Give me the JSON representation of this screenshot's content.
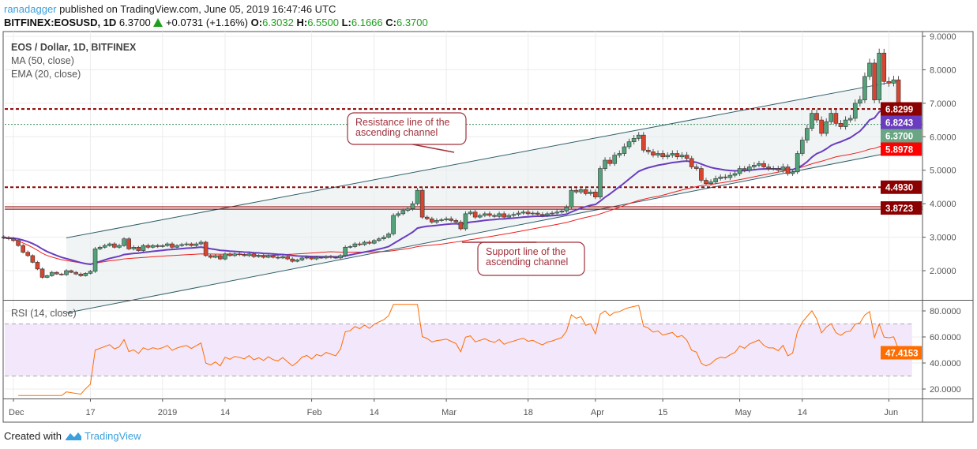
{
  "header": {
    "author": "ranadagger",
    "published": "published on TradingView.com, June 05, 2019 16:47:46 UTC",
    "symbol": "BITFINEX:EOSUSD, 1D",
    "last": "6.3700",
    "change": "+0.0731 (+1.16%)",
    "o_label": "O:",
    "o": "6.3032",
    "h_label": "H:",
    "h": "6.5500",
    "l_label": "L:",
    "l": "6.1666",
    "c_label": "C:",
    "c": "6.3700"
  },
  "legend": {
    "title": "EOS / Dollar, 1D, BITFINEX",
    "ma": "MA (50, close)",
    "ema": "EMA (20, close)",
    "rsi": "RSI (14, close)"
  },
  "footer": {
    "created": "Created with",
    "brand": "TradingView"
  },
  "colors": {
    "up": "#53a27a",
    "down": "#d9442f",
    "ma": "#f01e1e",
    "ema": "#6a3cc0",
    "rsi": "#ff6d00",
    "level": "#9b0f0f"
  },
  "chart_data": {
    "type": "candlestick",
    "start_date": "2018-11-29",
    "closes": [
      2.98,
      2.95,
      2.9,
      2.75,
      2.55,
      2.45,
      2.25,
      2.05,
      1.8,
      1.85,
      1.95,
      1.9,
      1.88,
      2.0,
      1.95,
      1.9,
      1.85,
      1.92,
      1.98,
      2.65,
      2.7,
      2.75,
      2.8,
      2.7,
      2.75,
      2.95,
      2.65,
      2.7,
      2.6,
      2.75,
      2.7,
      2.75,
      2.72,
      2.75,
      2.8,
      2.7,
      2.75,
      2.78,
      2.8,
      2.75,
      2.8,
      2.85,
      2.45,
      2.4,
      2.45,
      2.35,
      2.5,
      2.45,
      2.5,
      2.48,
      2.45,
      2.5,
      2.42,
      2.45,
      2.4,
      2.45,
      2.4,
      2.38,
      2.42,
      2.35,
      2.28,
      2.32,
      2.38,
      2.4,
      2.35,
      2.4,
      2.38,
      2.42,
      2.4,
      2.38,
      2.45,
      2.7,
      2.72,
      2.8,
      2.78,
      2.85,
      2.82,
      2.9,
      2.95,
      3.0,
      3.1,
      3.65,
      3.7,
      3.8,
      3.85,
      4.0,
      4.4,
      3.6,
      3.55,
      3.45,
      3.5,
      3.52,
      3.55,
      3.5,
      3.45,
      3.25,
      3.7,
      3.75,
      3.6,
      3.65,
      3.7,
      3.65,
      3.62,
      3.7,
      3.6,
      3.65,
      3.68,
      3.72,
      3.75,
      3.7,
      3.72,
      3.68,
      3.65,
      3.7,
      3.72,
      3.75,
      3.78,
      3.9,
      4.4,
      4.35,
      4.42,
      4.3,
      4.35,
      4.2,
      5.05,
      5.3,
      5.2,
      5.45,
      5.5,
      5.7,
      5.85,
      5.95,
      6.05,
      5.6,
      5.55,
      5.45,
      5.5,
      5.4,
      5.45,
      5.5,
      5.4,
      5.45,
      5.35,
      5.1,
      5.05,
      4.7,
      4.6,
      4.65,
      4.75,
      4.8,
      4.78,
      4.85,
      4.9,
      5.05,
      5.0,
      5.1,
      5.15,
      5.2,
      5.1,
      5.05,
      5.05,
      5.0,
      5.1,
      4.9,
      4.95,
      5.5,
      5.9,
      6.25,
      6.7,
      6.5,
      6.1,
      6.45,
      6.7,
      6.4,
      6.3,
      6.5,
      6.55,
      7.0,
      7.1,
      7.8,
      8.2,
      7.1,
      8.5,
      7.65,
      7.6,
      7.7,
      6.8,
      6.3,
      6.37
    ],
    "price_axis": {
      "ticks": [
        "9.0000",
        "8.0000",
        "7.0000",
        "6.0000",
        "5.0000",
        "4.0000",
        "3.0000",
        "2.0000"
      ],
      "values": [
        9,
        8,
        7,
        6,
        5,
        4,
        3,
        2
      ],
      "range": [
        1.45,
        9.15
      ]
    },
    "rsi_axis": {
      "ticks": [
        "80.0000",
        "60.0000",
        "40.0000",
        "20.0000"
      ],
      "values": [
        80,
        60,
        40,
        20
      ],
      "band": [
        30,
        70
      ]
    },
    "time_ticks": [
      {
        "label": "Dec",
        "day": 2
      },
      {
        "label": "17",
        "day": 18
      },
      {
        "label": "2019",
        "day": 33
      },
      {
        "label": "14",
        "day": 46
      },
      {
        "label": "Feb",
        "day": 64
      },
      {
        "label": "14",
        "day": 77
      },
      {
        "label": "Mar",
        "day": 92
      },
      {
        "label": "18",
        "day": 109
      },
      {
        "label": "Apr",
        "day": 123
      },
      {
        "label": "15",
        "day": 137
      },
      {
        "label": "May",
        "day": 153
      },
      {
        "label": "14",
        "day": 166
      },
      {
        "label": "Jun",
        "day": 184
      }
    ],
    "levels": [
      {
        "label": "6.8299",
        "value": 6.8299,
        "style": "dashed",
        "color": "#8b0000"
      },
      {
        "label": "4.4930",
        "value": 4.493,
        "style": "dashed",
        "color": "#8b0000"
      },
      {
        "label": "3.8723",
        "value": 3.8723,
        "style": "solid",
        "color": "#8b0000"
      }
    ],
    "price_labels": [
      {
        "label": "6.8243",
        "value": 6.8243,
        "color": "#6a3cc0"
      },
      {
        "label": "6.3700",
        "value": 6.37,
        "color": "#6aa584"
      },
      {
        "label": "5.8978",
        "value": 5.8978,
        "color": "#ff0000"
      }
    ],
    "rsi_last_label": "47.4153",
    "channel": {
      "upper": [
        [
          13,
          2.98
        ],
        [
          186,
          7.67
        ]
      ],
      "lower": [
        [
          26,
          1.1
        ],
        [
          186,
          5.57
        ]
      ]
    },
    "annotations": [
      {
        "text": [
          "Resistance line of the",
          "ascending channel"
        ]
      },
      {
        "text": [
          "Support line of the",
          "ascending channel"
        ]
      }
    ]
  }
}
